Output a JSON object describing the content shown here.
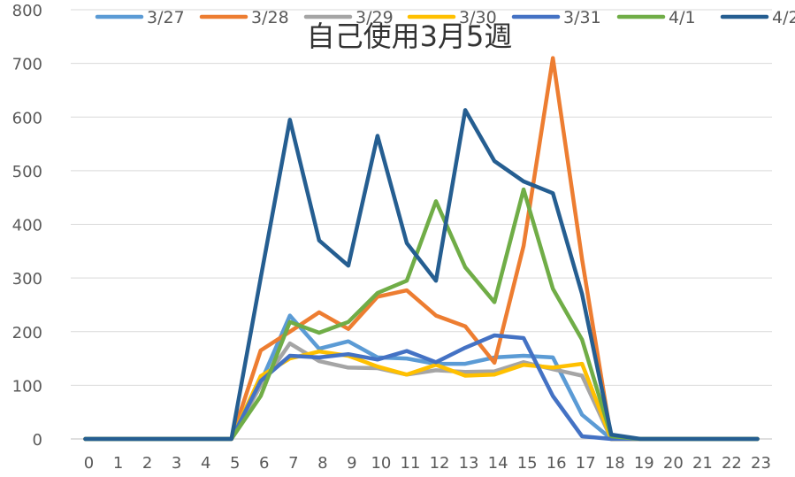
{
  "chart_data": {
    "type": "line",
    "title": "自己使用3月5週",
    "xlabel": "",
    "ylabel": "",
    "ylim": [
      0,
      800
    ],
    "y_ticks": [
      0,
      100,
      200,
      300,
      400,
      500,
      600,
      700,
      800
    ],
    "categories": [
      "0",
      "1",
      "2",
      "3",
      "4",
      "5",
      "6",
      "7",
      "8",
      "9",
      "10",
      "11",
      "12",
      "13",
      "14",
      "15",
      "16",
      "17",
      "18",
      "19",
      "20",
      "21",
      "22",
      "23"
    ],
    "grid": "horizontal",
    "legend_position": "top",
    "series": [
      {
        "name": "3/27",
        "color": "#5B9BD5",
        "values": [
          0,
          0,
          0,
          0,
          0,
          0,
          105,
          230,
          168,
          182,
          152,
          150,
          140,
          140,
          152,
          155,
          152,
          45,
          0,
          0,
          0,
          0,
          0,
          0
        ]
      },
      {
        "name": "3/28",
        "color": "#ED7D31",
        "values": [
          0,
          0,
          0,
          0,
          0,
          0,
          165,
          200,
          236,
          205,
          265,
          277,
          230,
          210,
          142,
          360,
          710,
          335,
          0,
          0,
          0,
          0,
          0,
          0
        ]
      },
      {
        "name": "3/29",
        "color": "#A5A5A5",
        "values": [
          0,
          0,
          0,
          0,
          0,
          0,
          100,
          178,
          145,
          133,
          132,
          120,
          128,
          125,
          126,
          143,
          130,
          118,
          0,
          0,
          0,
          0,
          0,
          0
        ]
      },
      {
        "name": "3/30",
        "color": "#FFC000",
        "values": [
          0,
          0,
          0,
          0,
          0,
          0,
          117,
          150,
          163,
          155,
          135,
          120,
          138,
          118,
          120,
          138,
          133,
          140,
          0,
          0,
          0,
          0,
          0,
          0
        ]
      },
      {
        "name": "3/31",
        "color": "#4472C4",
        "values": [
          0,
          0,
          0,
          0,
          0,
          0,
          108,
          155,
          152,
          158,
          148,
          164,
          143,
          170,
          193,
          188,
          80,
          5,
          0,
          0,
          0,
          0,
          0,
          0
        ]
      },
      {
        "name": "4/1",
        "color": "#70AD47",
        "values": [
          0,
          0,
          0,
          0,
          0,
          0,
          80,
          218,
          198,
          218,
          272,
          295,
          443,
          320,
          255,
          465,
          280,
          185,
          5,
          0,
          0,
          0,
          0,
          0
        ]
      },
      {
        "name": "4/2",
        "color": "#255E91",
        "values": [
          0,
          0,
          0,
          0,
          0,
          0,
          300,
          595,
          370,
          323,
          565,
          365,
          295,
          613,
          518,
          480,
          458,
          270,
          8,
          0,
          0,
          0,
          0,
          0
        ]
      }
    ]
  }
}
